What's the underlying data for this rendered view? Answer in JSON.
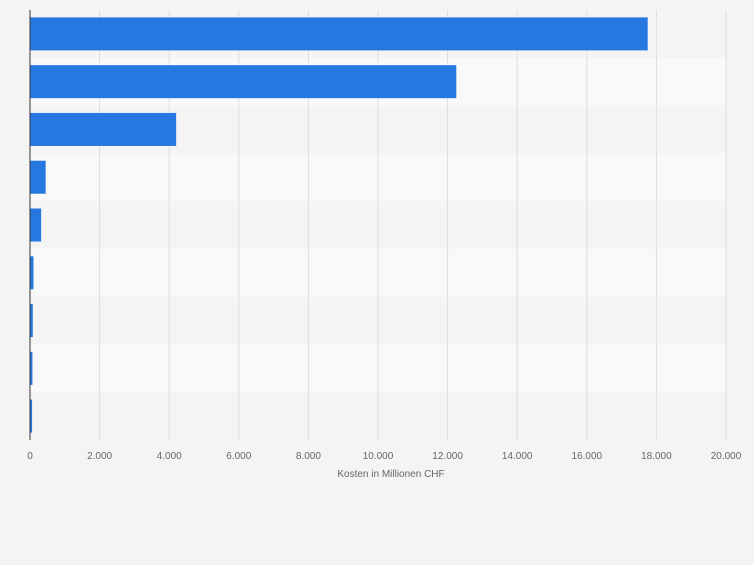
{
  "chart_data": {
    "type": "bar",
    "orientation": "horizontal",
    "categories": [
      "",
      "",
      "",
      "",
      "",
      "",
      "",
      "",
      ""
    ],
    "values": [
      17750,
      12250,
      4200,
      450,
      320,
      100,
      80,
      70,
      60
    ],
    "title": "",
    "xlabel": "Kosten in Millionen CHF",
    "ylabel": "",
    "xlim": [
      0,
      20000
    ],
    "xticks": [
      0,
      2000,
      4000,
      6000,
      8000,
      10000,
      12000,
      14000,
      16000,
      18000,
      20000
    ],
    "xtick_labels": [
      "0",
      "2.000",
      "4.000",
      "6.000",
      "8.000",
      "10.000",
      "12.000",
      "14.000",
      "16.000",
      "18.000",
      "20.000"
    ],
    "grid": true
  },
  "colors": {
    "bar": "#2677e0",
    "background": "#f4f4f4",
    "band_light": "#f9f9f9",
    "band_dark": "#f4f4f4",
    "gridline": "#dddddd",
    "axis": "#333333",
    "text": "#666666"
  }
}
